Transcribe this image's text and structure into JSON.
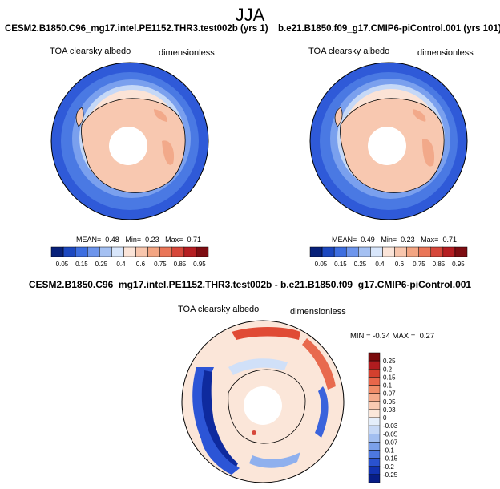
{
  "page": {
    "season": "JJA"
  },
  "panels": [
    {
      "case_title": "CESM2.B1850.C96_mg17.intel.PE1152.THR3.test002b (yrs 1)",
      "variable": "TOA clearsky albedo",
      "units": "dimensionless",
      "stats": {
        "mean_label": "MEAN=",
        "mean": "0.48",
        "min_label": "Min=",
        "min": "0.23",
        "max_label": "Max=",
        "max": "0.71"
      }
    },
    {
      "case_title": "b.e21.B1850.f09_g17.CMIP6-piControl.001 (yrs 101)",
      "variable": "TOA clearsky albedo",
      "units": "dimensionless",
      "stats": {
        "mean_label": "MEAN=",
        "mean": "0.49",
        "min_label": "Min=",
        "min": "0.23",
        "max_label": "Max=",
        "max": "0.71"
      }
    }
  ],
  "field_colorbar": {
    "labels": [
      "0.05",
      "0.15",
      "0.25",
      "0.4",
      "0.6",
      "0.75",
      "0.85",
      "0.95"
    ],
    "colors": [
      "#08217a",
      "#1c48c0",
      "#3d6ee0",
      "#6d95ec",
      "#a4c0f2",
      "#d8e6fb",
      "#fbe4d8",
      "#f8c6ad",
      "#f3a582",
      "#ea7658",
      "#d6473a",
      "#b51e22",
      "#7e0d12"
    ]
  },
  "difference": {
    "title": "CESM2.B1850.C96_mg17.intel.PE1152.THR3.test002b - b.e21.B1850.f09_g17.CMIP6-piControl.001",
    "variable": "TOA clearsky albedo",
    "units": "dimensionless",
    "range": {
      "min_label": "MIN =",
      "min": "-0.34",
      "max_label": "MAX =",
      "max": "0.27"
    },
    "colorbar": {
      "labels": [
        "0.25",
        "0.2",
        "0.15",
        "0.1",
        "0.07",
        "0.05",
        "0.03",
        "0",
        "-0.03",
        "-0.05",
        "-0.07",
        "-0.1",
        "-0.15",
        "-0.2",
        "-0.25"
      ],
      "colors": [
        "#7a0a0c",
        "#b01c1f",
        "#d4402e",
        "#e8664a",
        "#f08c68",
        "#f5ab8b",
        "#f9cab2",
        "#fbe7da",
        "#e4eefb",
        "#c6d8f6",
        "#a2bef0",
        "#7ba0ea",
        "#4d78e0",
        "#2a52cf",
        "#1232b0",
        "#071d86"
      ]
    }
  },
  "colors": {
    "ocean_deep": "#3b69e0",
    "ocean_mid": "#6e96ec",
    "ice_edge": "#c2d6f6",
    "land": "#f8c8b0",
    "land_high": "#f2a98a",
    "pole_hole": "#ffffff",
    "diff_pos": "#e04b35",
    "diff_neg": "#2c55d6",
    "diff_bg": "#fbe6d9"
  }
}
